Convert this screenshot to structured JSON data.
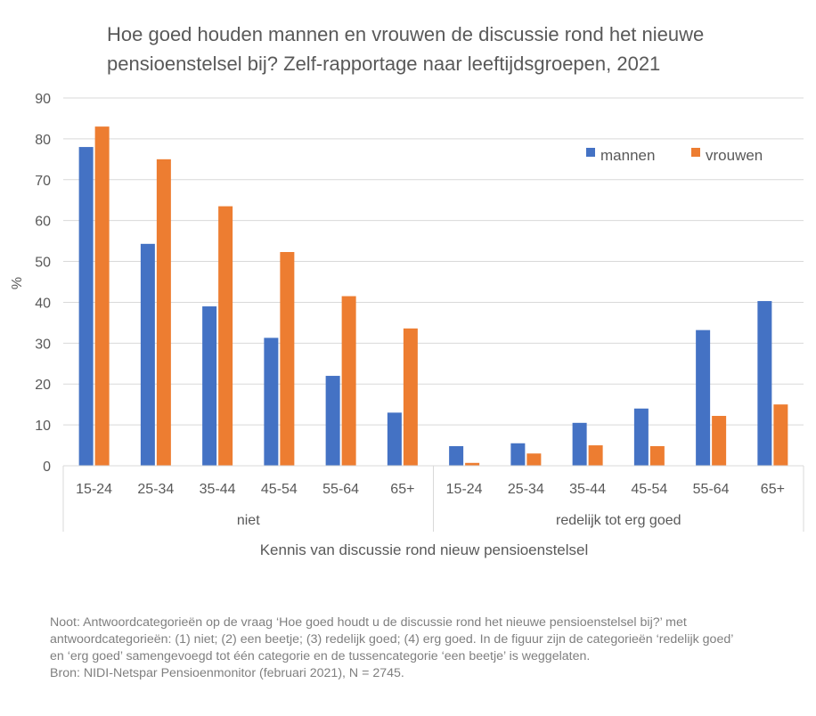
{
  "chart_data": {
    "type": "bar",
    "title": "Hoe goed houden mannen en vrouwen de discussie rond het nieuwe pensioenstelsel bij? Zelf-rapportage naar leeftijdsgroepen, 2021",
    "xlabel": "Kennis van discussie rond nieuw pensioenstelsel",
    "ylabel": "%",
    "ylim": [
      0,
      90
    ],
    "yticks": [
      0,
      10,
      20,
      30,
      40,
      50,
      60,
      70,
      80,
      90
    ],
    "grid": true,
    "legend_position": "top-right",
    "groups": [
      {
        "label": "niet",
        "categories": [
          "15-24",
          "25-34",
          "35-44",
          "45-54",
          "55-64",
          "65+"
        ]
      },
      {
        "label": "redelijk tot erg goed",
        "categories": [
          "15-24",
          "25-34",
          "35-44",
          "45-54",
          "55-64",
          "65+"
        ]
      }
    ],
    "series": [
      {
        "name": "mannen",
        "color": "#4472c4",
        "values": [
          78,
          54.3,
          39,
          31.3,
          22,
          13,
          4.8,
          5.5,
          10.5,
          14,
          33.2,
          40.3
        ]
      },
      {
        "name": "vrouwen",
        "color": "#ed7d31",
        "values": [
          83,
          75,
          63.5,
          52.3,
          41.5,
          33.6,
          0.7,
          3,
          5,
          4.8,
          12.2,
          15
        ]
      }
    ]
  },
  "note": [
    "Noot: Antwoordcategorieën op de vraag ‘Hoe goed houdt u de discussie rond het nieuwe pensioenstelsel bij?’ met",
    "antwoordcategorieën: (1) niet; (2) een beetje; (3) redelijk goed; (4) erg goed. In de figuur zijn de categorieën ‘redelijk goed’",
    "en ‘erg goed’ samengevoegd tot één categorie en de tussencategorie ‘een beetje’ is weggelaten.",
    "Bron: NIDI-Netspar Pensioenmonitor (februari 2021), N = 2745."
  ]
}
